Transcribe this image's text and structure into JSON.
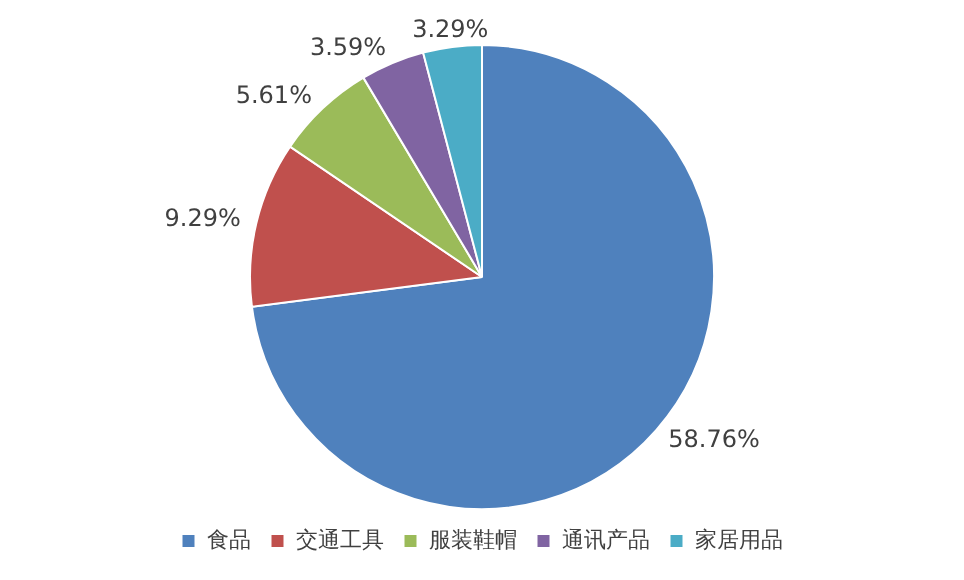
{
  "chart_data": {
    "type": "pie",
    "categories": [
      "食品",
      "交通工具",
      "服装鞋帽",
      "通讯产品",
      "家居用品"
    ],
    "values": [
      58.76,
      9.29,
      5.61,
      3.59,
      3.29
    ],
    "value_labels": [
      "58.76%",
      "9.29%",
      "5.61%",
      "3.59%",
      "3.29%"
    ],
    "colors": [
      "#4f81bd",
      "#c0504d",
      "#9bbb59",
      "#8064a2",
      "#4bacc6"
    ],
    "legend": "bottom"
  }
}
